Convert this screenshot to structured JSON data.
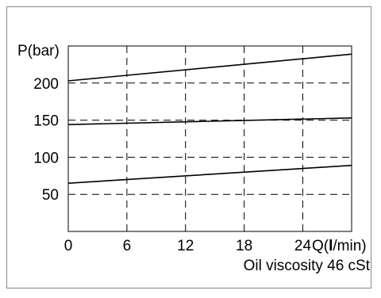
{
  "chart_data": {
    "type": "line",
    "ylabel": "P(bar)",
    "xlabel_prefix": "Q(",
    "xlabel_bold": "l",
    "xlabel_suffix": "/min)",
    "note": "Oil viscosity 46 cSt",
    "x_ticks": [
      0,
      6,
      12,
      18,
      24
    ],
    "y_ticks": [
      50,
      100,
      150,
      200
    ],
    "xlim": [
      0,
      29
    ],
    "ylim": [
      0,
      250
    ],
    "grid": "dashed",
    "series": [
      {
        "x": [
          0,
          29
        ],
        "y": [
          203,
          239
        ]
      },
      {
        "x": [
          0,
          29
        ],
        "y": [
          144,
          153
        ]
      },
      {
        "x": [
          0,
          29
        ],
        "y": [
          65,
          89
        ]
      }
    ],
    "colors": {
      "line": "#000000",
      "grid": "#000000",
      "frame": "#888888"
    }
  }
}
